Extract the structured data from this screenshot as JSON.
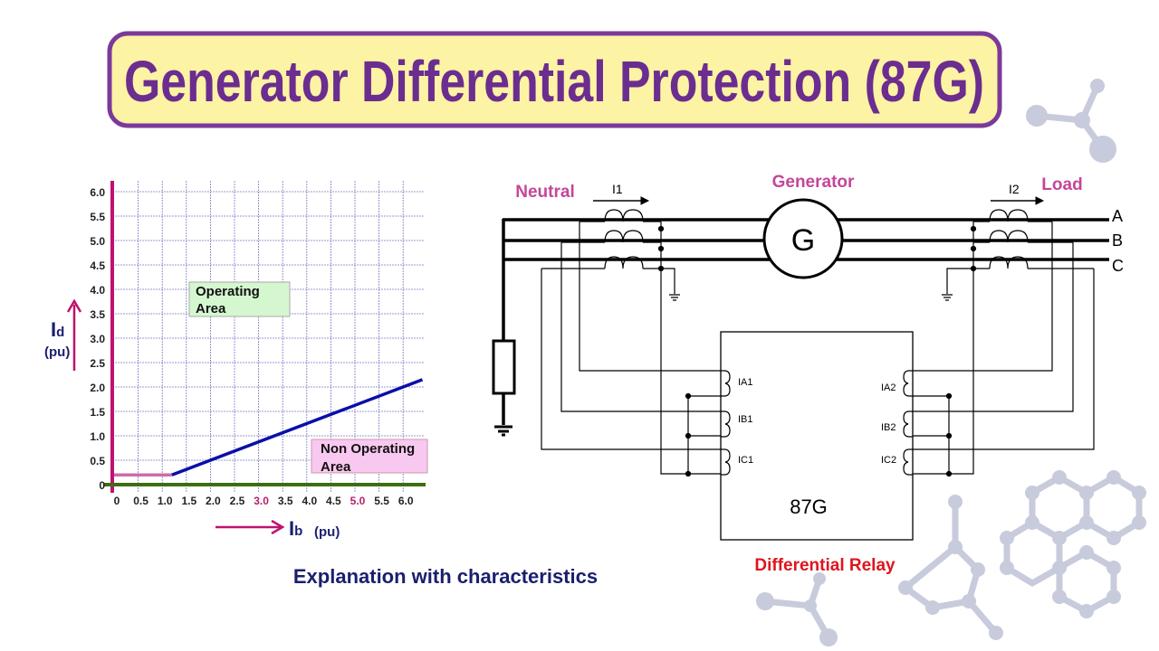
{
  "title": "Generator Differential Protection (87G)",
  "colors": {
    "title_text": "#6b2d8f",
    "title_border": "#7b3a9a",
    "title_fill": "#fdf3a4",
    "label_pink": "#c4469a",
    "relay_red": "#e0141e",
    "navy": "#1a1f6e",
    "axis_pink": "#c0116f",
    "baseline_green": "#3c6e12",
    "characteristic_blue": "#0a0fa8",
    "decoration": "#c7cbdb"
  },
  "chart_data": {
    "type": "line",
    "title": "",
    "xlabel": {
      "symbol": "I",
      "subscript": "b",
      "unit": "(pu)"
    },
    "ylabel": {
      "symbol": "I",
      "subscript": "d",
      "unit": "(pu)"
    },
    "xlim": [
      0,
      6.4
    ],
    "ylim": [
      0,
      6.0
    ],
    "grid": true,
    "x_ticks": [
      "0",
      "0.5",
      "1.0",
      "1.5",
      "2.0",
      "2.5",
      "3.0",
      "3.5",
      "4.0",
      "4.5",
      "5.0",
      "5.5",
      "6.0"
    ],
    "x_ticks_highlighted": [
      "3.0",
      "5.0"
    ],
    "y_ticks": [
      "0",
      "0.5",
      "1.0",
      "1.5",
      "2.0",
      "2.5",
      "3.0",
      "3.5",
      "4.0",
      "4.5",
      "5.0",
      "5.5",
      "6.0"
    ],
    "series": [
      {
        "points": [
          [
            0,
            0.2
          ],
          [
            1.2,
            0.2
          ]
        ],
        "color": "#d06aa8"
      },
      {
        "points": [
          [
            1.2,
            0.2
          ],
          [
            6.4,
            2.15
          ]
        ],
        "color": "#0a0fa8"
      }
    ],
    "regions": [
      {
        "label_line1": "Operating",
        "label_line2": "Area",
        "fill": "#d4f7cf"
      },
      {
        "label_line1": "Non Operating",
        "label_line2": "Area",
        "fill": "#f9c8f0"
      }
    ]
  },
  "caption": "Explanation with characteristics",
  "diagram": {
    "neutral_label": "Neutral",
    "generator_label": "Generator",
    "load_label": "Load",
    "generator_symbol": "G",
    "current_in": "I1",
    "current_out": "I2",
    "phases": [
      "A",
      "B",
      "C"
    ],
    "relay_name": "87G",
    "relay_label": "Differential Relay",
    "coils_left": [
      "IA1",
      "IB1",
      "IC1"
    ],
    "coils_right": [
      "IA2",
      "IB2",
      "IC2"
    ]
  }
}
